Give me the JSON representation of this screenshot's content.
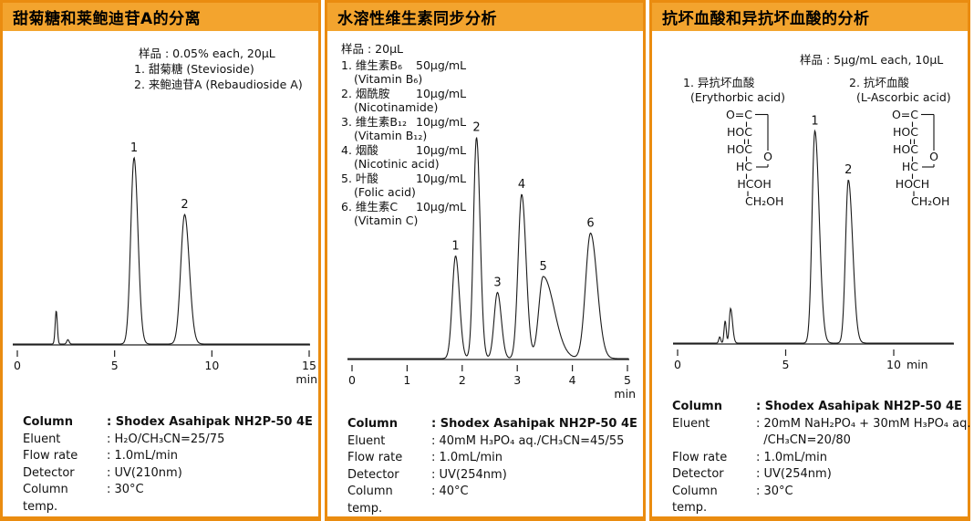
{
  "colors": {
    "panel_border": "#ea8c10",
    "header_bg": "#f3a42e",
    "header_text": "#000000",
    "trace": "#1a1a1a"
  },
  "panels": [
    {
      "title": "甜菊糖和莱鲍迪苷A的分离",
      "sample_note": "样品 : 0.05% each, 20µL",
      "sample_items": [
        "1. 甜菊糖 (Stevioside)",
        "2. 来鲍迪苷A (Rebaudioside A)"
      ],
      "info": [
        {
          "label": "Column",
          "value": ": Shodex Asahipak NH2P-50 4E"
        },
        {
          "label": "Eluent",
          "value": ": H₂O/CH₃CN=25/75"
        },
        {
          "label": "Flow rate",
          "value": ": 1.0mL/min"
        },
        {
          "label": "Detector",
          "value": ": UV(210nm)"
        },
        {
          "label": "Column temp.",
          "value": ": 30°C"
        }
      ]
    },
    {
      "title": "水溶性维生素同步分析",
      "sample_note": "样品 : 20µL",
      "vitamins": [
        {
          "name": "1. 维生素B₆",
          "amount": "50µg/mL",
          "en": "(Vitamin B₆)"
        },
        {
          "name": "2. 烟酰胺",
          "amount": "10µg/mL",
          "en": "(Nicotinamide)"
        },
        {
          "name": "3. 维生素B₁₂",
          "amount": "10µg/mL",
          "en": "(Vitamin B₁₂)"
        },
        {
          "name": "4. 烟酸",
          "amount": "10µg/mL",
          "en": "(Nicotinic acid)"
        },
        {
          "name": "5. 叶酸",
          "amount": "10µg/mL",
          "en": "(Folic acid)"
        },
        {
          "name": "6. 维生素C",
          "amount": "10µg/mL",
          "en": "(Vitamin C)"
        }
      ],
      "info": [
        {
          "label": "Column",
          "value": ": Shodex Asahipak NH2P-50 4E"
        },
        {
          "label": "Eluent",
          "value": ": 40mM H₃PO₄ aq./CH₃CN=45/55"
        },
        {
          "label": "Flow rate",
          "value": ": 1.0mL/min"
        },
        {
          "label": "Detector",
          "value": ": UV(254nm)"
        },
        {
          "label": "Column temp.",
          "value": ": 40°C"
        }
      ]
    },
    {
      "title": "抗坏血酸和异抗坏血酸的分析",
      "sample_note": "样品 : 5µg/mL each, 10µL",
      "compounds": [
        {
          "label": "1. 异抗坏血酸",
          "en": "(Erythorbic acid)",
          "structure": [
            "O=C",
            "HOC",
            "HOC",
            "HC",
            "HCOH",
            "CH₂OH"
          ]
        },
        {
          "label": "2. 抗坏血酸",
          "en": "(L-Ascorbic acid)",
          "structure": [
            "O=C",
            "HOC",
            "HOC",
            "HC",
            "HOCH",
            "CH₂OH"
          ]
        }
      ],
      "info": [
        {
          "label": "Column",
          "value": ": Shodex Asahipak NH2P-50 4E"
        },
        {
          "label": "Eluent",
          "value": ": 20mM NaH₂PO₄ + 30mM H₃PO₄ aq."
        },
        {
          "label": "",
          "value": "  /CH₃CN=20/80"
        },
        {
          "label": "Flow rate",
          "value": ": 1.0mL/min"
        },
        {
          "label": "Detector",
          "value": ": UV(254nm)"
        },
        {
          "label": "Column temp.",
          "value": ": 30°C"
        }
      ]
    }
  ],
  "chart_data": [
    {
      "type": "line",
      "kind": "chromatogram",
      "title": "甜菊糖和莱鲍迪苷A的分离",
      "xlabel": "min",
      "xlim": [
        0,
        15.1
      ],
      "xticks": [
        0,
        5,
        10,
        15
      ],
      "unit_placement": "below-last",
      "ylabel": "",
      "grid": false,
      "peaks": [
        {
          "t": 2.0,
          "h": 0.17,
          "w": 0.055
        },
        {
          "t": 2.6,
          "h": 0.022,
          "w": 0.06
        },
        {
          "t": 6.0,
          "h": 0.95,
          "w": 0.17,
          "wr": 0.2,
          "label": "1"
        },
        {
          "t": 8.6,
          "h": 0.66,
          "w": 0.2,
          "wr": 0.24,
          "label": "2"
        }
      ]
    },
    {
      "type": "line",
      "kind": "chromatogram",
      "title": "水溶性维生素同步分析",
      "xlabel": "min",
      "xlim": [
        0,
        5.07
      ],
      "xticks": [
        0,
        1,
        2,
        3,
        4,
        5
      ],
      "unit_placement": "below-last",
      "ylabel": "",
      "grid": false,
      "peaks": [
        {
          "t": 1.88,
          "h": 0.45,
          "w": 0.06,
          "wr": 0.07,
          "label": "1"
        },
        {
          "t": 2.26,
          "h": 0.97,
          "w": 0.055,
          "wr": 0.065,
          "label": "2"
        },
        {
          "t": 2.64,
          "h": 0.29,
          "w": 0.06,
          "wr": 0.07,
          "label": "3"
        },
        {
          "t": 3.08,
          "h": 0.72,
          "w": 0.065,
          "wr": 0.08,
          "label": "4"
        },
        {
          "t": 3.47,
          "h": 0.36,
          "w": 0.08,
          "wr": 0.2,
          "label": "5"
        },
        {
          "t": 4.33,
          "h": 0.55,
          "w": 0.09,
          "wr": 0.12,
          "label": "6"
        }
      ]
    },
    {
      "type": "line",
      "kind": "chromatogram",
      "title": "抗坏血酸和异抗坏血酸的分析",
      "xlabel": "min",
      "xlim": [
        0,
        12.8
      ],
      "xticks": [
        0,
        5,
        10
      ],
      "unit_placement": "inline",
      "ylabel": "",
      "grid": false,
      "peaks": [
        {
          "t": 1.95,
          "h": 0.028,
          "w": 0.045
        },
        {
          "t": 2.2,
          "h": 0.1,
          "w": 0.05
        },
        {
          "t": 2.45,
          "h": 0.155,
          "w": 0.06,
          "wr": 0.09
        },
        {
          "t": 6.35,
          "h": 0.95,
          "w": 0.13,
          "wr": 0.2,
          "label": "1"
        },
        {
          "t": 7.9,
          "h": 0.73,
          "w": 0.13,
          "wr": 0.2,
          "label": "2"
        }
      ]
    }
  ]
}
